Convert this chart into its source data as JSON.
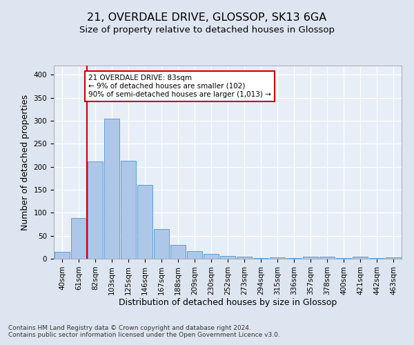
{
  "title_line1": "21, OVERDALE DRIVE, GLOSSOP, SK13 6GA",
  "title_line2": "Size of property relative to detached houses in Glossop",
  "xlabel": "Distribution of detached houses by size in Glossop",
  "ylabel": "Number of detached properties",
  "footnote": "Contains HM Land Registry data © Crown copyright and database right 2024.\nContains public sector information licensed under the Open Government Licence v3.0.",
  "bin_labels": [
    "40sqm",
    "61sqm",
    "82sqm",
    "103sqm",
    "125sqm",
    "146sqm",
    "167sqm",
    "188sqm",
    "209sqm",
    "230sqm",
    "252sqm",
    "273sqm",
    "294sqm",
    "315sqm",
    "336sqm",
    "357sqm",
    "378sqm",
    "400sqm",
    "421sqm",
    "442sqm",
    "463sqm"
  ],
  "bar_values": [
    15,
    88,
    211,
    304,
    213,
    160,
    64,
    30,
    17,
    10,
    6,
    4,
    2,
    3,
    2,
    4,
    4,
    2,
    5,
    2,
    3
  ],
  "bar_color": "#aec6e8",
  "bar_edge_color": "#5a9fd4",
  "vline_x_index": 1.5,
  "vline_color": "#cc0000",
  "annotation_text": "21 OVERDALE DRIVE: 83sqm\n← 9% of detached houses are smaller (102)\n90% of semi-detached houses are larger (1,013) →",
  "annotation_box_facecolor": "#ffffff",
  "annotation_box_edgecolor": "#cc0000",
  "ylim": [
    0,
    420
  ],
  "yticks": [
    0,
    50,
    100,
    150,
    200,
    250,
    300,
    350,
    400
  ],
  "bg_color": "#dde5f0",
  "plot_bg_color": "#e8eef8",
  "grid_color": "#ffffff",
  "title_fontsize": 11.5,
  "subtitle_fontsize": 9.5,
  "tick_fontsize": 7.5,
  "ylabel_fontsize": 9,
  "xlabel_fontsize": 9,
  "annotation_fontsize": 7.5,
  "footnote_fontsize": 6.5
}
